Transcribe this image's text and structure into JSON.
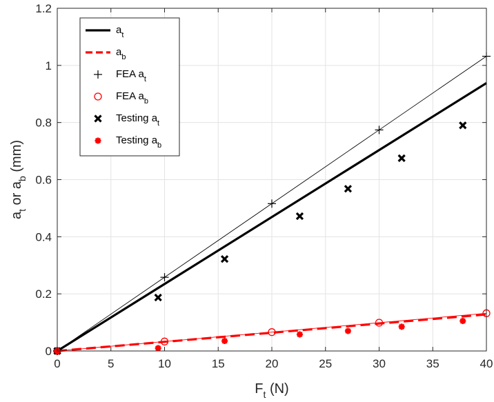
{
  "chart_data": {
    "type": "line",
    "xlabel": {
      "main": "F",
      "sub": "t",
      "suffix": " (N)"
    },
    "ylabel": {
      "p1": "a",
      "s1": "t",
      "p2": " or a",
      "s2": "b",
      "suffix": " (mm)"
    },
    "xlim": [
      0,
      40
    ],
    "ylim": [
      0,
      1.2
    ],
    "xticks": [
      0,
      5,
      10,
      15,
      20,
      25,
      30,
      35,
      40
    ],
    "yticks": [
      0,
      0.2,
      0.4,
      0.6,
      0.8,
      1.0,
      1.2
    ],
    "xtick_labels": [
      "0",
      "5",
      "10",
      "15",
      "20",
      "25",
      "30",
      "35",
      "40"
    ],
    "ytick_labels": [
      "0",
      "0.2",
      "0.4",
      "0.6",
      "0.8",
      "1",
      "1.2"
    ],
    "grid": true,
    "legend_position": "top-left",
    "series": [
      {
        "key": "at",
        "label": "a",
        "sub": "t",
        "style": "line",
        "color": "#000000",
        "x": [
          0,
          40
        ],
        "y": [
          0,
          0.938
        ]
      },
      {
        "key": "ab",
        "label": "a",
        "sub": "b",
        "style": "dashed",
        "color": "#ff0000",
        "x": [
          0,
          40
        ],
        "y": [
          0,
          0.128
        ]
      },
      {
        "key": "fea_at",
        "label": "FEA a",
        "sub": "t",
        "style": "plus-line",
        "color": "#000000",
        "x": [
          0,
          10,
          20,
          30,
          40
        ],
        "y": [
          0,
          0.258,
          0.516,
          0.774,
          1.032
        ]
      },
      {
        "key": "fea_ab",
        "label": "FEA a",
        "sub": "b",
        "style": "circle-line",
        "color": "#ff0000",
        "x": [
          0,
          10,
          20,
          30,
          40
        ],
        "y": [
          0,
          0.033,
          0.066,
          0.099,
          0.132
        ]
      },
      {
        "key": "test_at",
        "label": "Testing a",
        "sub": "t",
        "style": "x",
        "color": "#000000",
        "x": [
          0,
          9.4,
          15.6,
          22.6,
          27.1,
          32.1,
          37.8
        ],
        "y": [
          0,
          0.187,
          0.322,
          0.472,
          0.568,
          0.675,
          0.79
        ]
      },
      {
        "key": "test_ab",
        "label": "Testing a",
        "sub": "b",
        "style": "asterisk",
        "color": "#ff0000",
        "x": [
          0,
          9.4,
          15.6,
          22.6,
          27.1,
          32.1,
          37.8
        ],
        "y": [
          0,
          0.01,
          0.035,
          0.058,
          0.07,
          0.085,
          0.105
        ]
      }
    ]
  }
}
